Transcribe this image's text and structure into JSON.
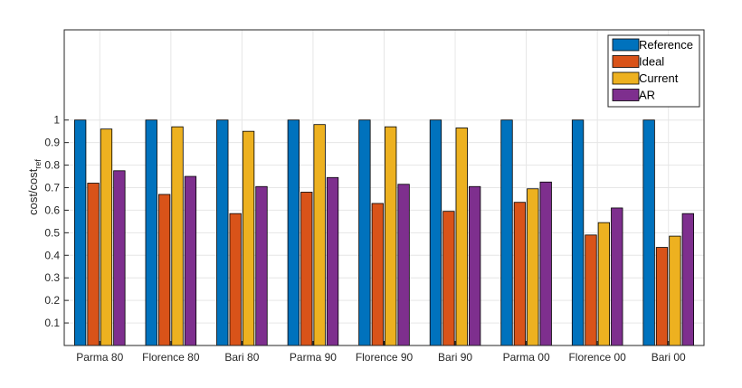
{
  "chart_data": {
    "type": "bar",
    "title": "",
    "xlabel": "",
    "ylabel": "cost/cost",
    "ylabel_sub": "ref",
    "ylim": [
      0,
      1.4
    ],
    "yticks": [
      0.1,
      0.2,
      0.3,
      0.4,
      0.5,
      0.6,
      0.7,
      0.8,
      0.9,
      1
    ],
    "grid": true,
    "legend_position": "top-right",
    "categories": [
      "Parma 80",
      "Florence 80",
      "Bari 80",
      "Parma 90",
      "Florence 90",
      "Bari 90",
      "Parma 00",
      "Florence 00",
      "Bari 00"
    ],
    "series": [
      {
        "name": "Reference",
        "color": "#0072BD",
        "values": [
          1,
          1,
          1,
          1,
          1,
          1,
          1,
          1,
          1
        ]
      },
      {
        "name": "Ideal",
        "color": "#D95319",
        "values": [
          0.72,
          0.67,
          0.585,
          0.68,
          0.63,
          0.595,
          0.635,
          0.49,
          0.435
        ]
      },
      {
        "name": "Current",
        "color": "#EDB120",
        "values": [
          0.96,
          0.97,
          0.95,
          0.98,
          0.97,
          0.965,
          0.695,
          0.545,
          0.485
        ]
      },
      {
        "name": "AR",
        "color": "#7E2F8E",
        "values": [
          0.775,
          0.75,
          0.705,
          0.745,
          0.715,
          0.705,
          0.725,
          0.61,
          0.585
        ]
      }
    ]
  }
}
